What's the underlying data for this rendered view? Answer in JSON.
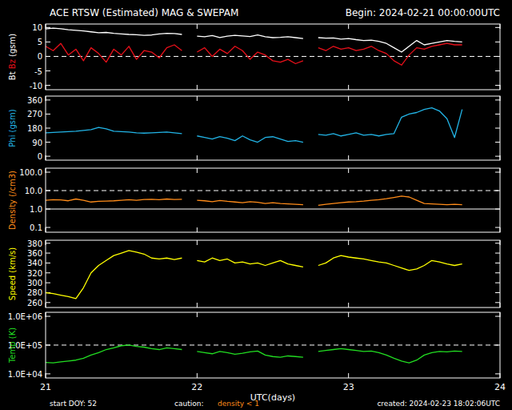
{
  "title": "ACE RTSW (Estimated) MAG & SWEPAM",
  "begin": "Begin: 2024-02-21 00:00:00UTC",
  "x_label": "UTC(days)",
  "footer": {
    "start": "start DOY: 52",
    "caution": "caution:",
    "caution_note": "density < 1",
    "created": "created: 2024-02-23 18:02:06UTC"
  },
  "chart_data": [
    {
      "type": "line",
      "y_label": "(gsm)",
      "tick_labels": "y",
      "x": [
        21,
        21.05,
        21.1,
        21.15,
        21.2,
        21.25,
        21.3,
        21.35,
        21.4,
        21.45,
        21.5,
        21.55,
        21.6,
        21.65,
        21.7,
        21.75,
        21.8,
        21.85,
        21.9,
        21.95,
        22,
        22.05,
        22.1,
        22.15,
        22.2,
        22.25,
        22.3,
        22.35,
        22.4,
        22.45,
        22.5,
        22.55,
        22.6,
        22.65,
        22.7,
        22.75,
        22.8,
        22.85,
        22.9,
        22.95,
        23,
        23.05,
        23.1,
        23.15,
        23.2,
        23.25,
        23.3,
        23.35,
        23.4,
        23.45,
        23.5,
        23.55,
        23.6,
        23.65,
        23.7,
        23.75
      ],
      "xlim": [
        21,
        24
      ],
      "xticks": [
        21,
        22,
        23,
        24
      ],
      "ylim": [
        -11.5,
        11.2
      ],
      "yticks": [
        -10,
        -5,
        0,
        5,
        10
      ],
      "hlines": [
        {
          "value": 0,
          "line_style": "dashed"
        }
      ],
      "series": [
        {
          "name": "Bt",
          "color": "#ffffff",
          "values": [
            9.5,
            9.8,
            9.6,
            9.2,
            9.0,
            8.8,
            8.5,
            8.2,
            8.3,
            8.0,
            7.8,
            7.6,
            7.5,
            7.3,
            7.4,
            7.8,
            8.0,
            7.9,
            7.6,
            null,
            7.0,
            6.8,
            7.2,
            6.5,
            7.0,
            7.3,
            7.1,
            6.9,
            7.4,
            6.8,
            6.5,
            6.6,
            6.8,
            6.5,
            6.2,
            null,
            6.5,
            6.3,
            6.4,
            6.0,
            6.2,
            5.8,
            5.5,
            5.6,
            5.2,
            4.5,
            3.0,
            1.5,
            3.5,
            5.5,
            4.0,
            4.5,
            5.0,
            5.5,
            5.2,
            5.0
          ]
        },
        {
          "name": "Bz",
          "color": "#e8101a",
          "values": [
            3.5,
            2.0,
            4.5,
            0.5,
            2.5,
            -1.5,
            3.0,
            1.0,
            -2.0,
            2.5,
            0.5,
            3.5,
            -1.0,
            2.0,
            1.5,
            -0.5,
            3.0,
            4.0,
            2.0,
            null,
            1.5,
            3.0,
            0.0,
            2.5,
            1.0,
            3.5,
            2.0,
            -1.0,
            1.5,
            0.5,
            -1.5,
            -2.0,
            -1.0,
            -2.5,
            -1.5,
            null,
            3.0,
            2.0,
            3.5,
            2.5,
            3.0,
            2.0,
            2.5,
            3.5,
            2.0,
            1.0,
            -1.5,
            -3.0,
            0.5,
            3.0,
            2.5,
            3.5,
            4.0,
            4.5,
            4.0,
            4.0
          ]
        }
      ]
    },
    {
      "type": "line",
      "y_label": "(gsm)",
      "tick_labels": "y",
      "x": [
        21,
        21.05,
        21.1,
        21.15,
        21.2,
        21.25,
        21.3,
        21.35,
        21.4,
        21.45,
        21.5,
        21.55,
        21.6,
        21.65,
        21.7,
        21.75,
        21.8,
        21.85,
        21.9,
        21.95,
        22,
        22.05,
        22.1,
        22.15,
        22.2,
        22.25,
        22.3,
        22.35,
        22.4,
        22.45,
        22.5,
        22.55,
        22.6,
        22.65,
        22.7,
        22.75,
        22.8,
        22.85,
        22.9,
        22.95,
        23,
        23.05,
        23.1,
        23.15,
        23.2,
        23.25,
        23.3,
        23.35,
        23.4,
        23.45,
        23.5,
        23.55,
        23.6,
        23.65,
        23.7,
        23.75
      ],
      "xlim": [
        21,
        24
      ],
      "xticks": [
        21,
        22,
        23,
        24
      ],
      "ylim": [
        -25,
        385
      ],
      "yticks": [
        0,
        90,
        180,
        270,
        360
      ],
      "series": [
        {
          "name": "Phi",
          "color": "#22b4e6",
          "values": [
            150,
            152,
            155,
            158,
            160,
            165,
            170,
            185,
            175,
            160,
            158,
            155,
            150,
            148,
            150,
            152,
            155,
            150,
            145,
            null,
            130,
            120,
            110,
            125,
            115,
            100,
            130,
            105,
            90,
            120,
            125,
            110,
            95,
            100,
            90,
            null,
            140,
            135,
            145,
            130,
            140,
            150,
            135,
            140,
            130,
            140,
            145,
            250,
            270,
            280,
            300,
            310,
            290,
            240,
            120,
            300
          ]
        }
      ]
    },
    {
      "type": "line",
      "y_label": "(/cm3)",
      "tick_labels": "y",
      "log": "y",
      "x": [
        21,
        21.05,
        21.1,
        21.15,
        21.2,
        21.25,
        21.3,
        21.35,
        21.4,
        21.45,
        21.5,
        21.55,
        21.6,
        21.65,
        21.7,
        21.75,
        21.8,
        21.85,
        21.9,
        21.95,
        22,
        22.05,
        22.1,
        22.15,
        22.2,
        22.25,
        22.3,
        22.35,
        22.4,
        22.45,
        22.5,
        22.55,
        22.6,
        22.65,
        22.7,
        22.75,
        22.8,
        22.85,
        22.9,
        22.95,
        23,
        23.05,
        23.1,
        23.15,
        23.2,
        23.25,
        23.3,
        23.35,
        23.4,
        23.45,
        23.5,
        23.55,
        23.6,
        23.65,
        23.7,
        23.75
      ],
      "xlim": [
        21,
        24
      ],
      "xticks": [
        21,
        22,
        23,
        24
      ],
      "ylim": [
        0.055,
        165
      ],
      "yticks": [
        0.1,
        {
          "value": 1,
          "label": "1.0"
        },
        {
          "value": 10,
          "label": "10.0"
        },
        {
          "value": 100,
          "label": "100.0"
        }
      ],
      "hlines": [
        {
          "value": 10,
          "line_style": "dashed"
        },
        {
          "value": 1,
          "line_style": "solid"
        }
      ],
      "series": [
        {
          "name": "Density",
          "color": "#ff8c1a",
          "values": [
            3.0,
            3.2,
            3.1,
            2.8,
            3.5,
            3.0,
            2.4,
            2.6,
            2.7,
            2.8,
            3.0,
            3.2,
            3.0,
            3.3,
            3.4,
            3.2,
            3.5,
            3.3,
            3.4,
            null,
            3.0,
            2.8,
            2.5,
            2.9,
            2.6,
            2.4,
            2.2,
            2.5,
            2.3,
            2.0,
            2.2,
            2.0,
            1.9,
            1.8,
            1.7,
            null,
            1.6,
            1.8,
            2.0,
            2.2,
            2.4,
            2.5,
            2.7,
            3.0,
            3.2,
            3.6,
            4.2,
            5.0,
            4.5,
            3.0,
            2.0,
            1.9,
            1.8,
            1.7,
            1.8,
            1.7
          ]
        }
      ]
    },
    {
      "type": "line",
      "y_label": "(km/s)",
      "tick_labels": "y",
      "x": [
        21,
        21.05,
        21.1,
        21.15,
        21.2,
        21.25,
        21.3,
        21.35,
        21.4,
        21.45,
        21.5,
        21.55,
        21.6,
        21.65,
        21.7,
        21.75,
        21.8,
        21.85,
        21.9,
        21.95,
        22,
        22.05,
        22.1,
        22.15,
        22.2,
        22.25,
        22.3,
        22.35,
        22.4,
        22.45,
        22.5,
        22.55,
        22.6,
        22.65,
        22.7,
        22.75,
        22.8,
        22.85,
        22.9,
        22.95,
        23,
        23.05,
        23.1,
        23.15,
        23.2,
        23.25,
        23.3,
        23.35,
        23.4,
        23.45,
        23.5,
        23.55,
        23.6,
        23.65,
        23.7,
        23.75
      ],
      "xlim": [
        21,
        24
      ],
      "xticks": [
        21,
        22,
        23,
        24
      ],
      "ylim": [
        250,
        386
      ],
      "yticks": [
        260,
        280,
        300,
        320,
        340,
        360,
        380
      ],
      "series": [
        {
          "name": "Speed",
          "color": "#ffff00",
          "values": [
            280,
            278,
            275,
            272,
            268,
            290,
            320,
            335,
            345,
            355,
            360,
            365,
            362,
            358,
            350,
            348,
            350,
            347,
            350,
            null,
            345,
            342,
            350,
            345,
            348,
            340,
            342,
            338,
            340,
            335,
            340,
            345,
            338,
            335,
            332,
            null,
            335,
            340,
            350,
            355,
            352,
            350,
            348,
            345,
            342,
            340,
            335,
            330,
            325,
            328,
            335,
            345,
            342,
            338,
            335,
            338
          ]
        }
      ]
    },
    {
      "type": "line",
      "y_label": "(K)",
      "log": "y",
      "x": [
        21,
        21.05,
        21.1,
        21.15,
        21.2,
        21.25,
        21.3,
        21.35,
        21.4,
        21.45,
        21.5,
        21.55,
        21.6,
        21.65,
        21.7,
        21.75,
        21.8,
        21.85,
        21.9,
        21.95,
        22,
        22.05,
        22.1,
        22.15,
        22.2,
        22.25,
        22.3,
        22.35,
        22.4,
        22.45,
        22.5,
        22.55,
        22.6,
        22.65,
        22.7,
        22.75,
        22.8,
        22.85,
        22.9,
        22.95,
        23,
        23.05,
        23.1,
        23.15,
        23.2,
        23.25,
        23.3,
        23.35,
        23.4,
        23.45,
        23.5,
        23.55,
        23.6,
        23.65,
        23.7,
        23.75
      ],
      "xlim": [
        21,
        24
      ],
      "xticks": [
        21,
        22,
        23,
        24
      ],
      "ylim": [
        7200,
        1380000
      ],
      "yticks": [
        {
          "value": 10000,
          "label": "1.0E+04"
        },
        {
          "value": 100000,
          "label": "1.0E+05"
        },
        {
          "value": 1000000,
          "label": "1.0E+06"
        }
      ],
      "hlines": [
        {
          "value": 100000,
          "line_style": "dashed"
        }
      ],
      "series": [
        {
          "name": "Temp",
          "color": "#22dd22",
          "values": [
            25000,
            24000,
            26000,
            28000,
            30000,
            35000,
            45000,
            55000,
            70000,
            80000,
            95000,
            100000,
            90000,
            85000,
            75000,
            70000,
            80000,
            75000,
            70000,
            null,
            60000,
            55000,
            50000,
            60000,
            55000,
            48000,
            52000,
            58000,
            62000,
            45000,
            40000,
            38000,
            42000,
            40000,
            38000,
            null,
            60000,
            65000,
            70000,
            75000,
            70000,
            65000,
            60000,
            62000,
            55000,
            45000,
            35000,
            28000,
            24000,
            30000,
            45000,
            55000,
            60000,
            58000,
            62000,
            60000
          ]
        }
      ]
    }
  ]
}
